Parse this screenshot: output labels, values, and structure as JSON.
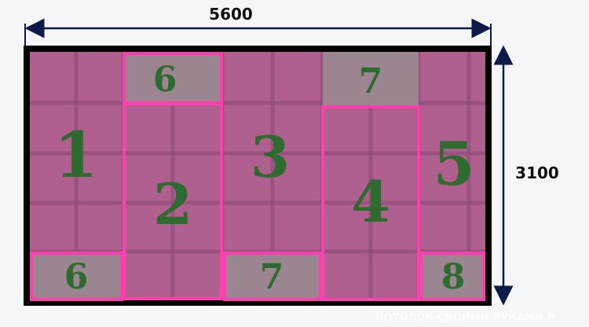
{
  "dimensions": {
    "width_label": "5600",
    "height_label": "3100"
  },
  "colors": {
    "panel": "#b0608e",
    "highlight": "#ff3fb0",
    "gray_panel": "#9a8590",
    "number": "#2e6b2e",
    "frame": "#000000",
    "arrow": "#0d1b4a"
  },
  "panels": [
    {
      "label": "1",
      "highlighted": false,
      "gray": false
    },
    {
      "label": "6",
      "highlighted": true,
      "gray": true
    },
    {
      "label": "2",
      "highlighted": true,
      "gray": false
    },
    {
      "label": "3",
      "highlighted": false,
      "gray": false
    },
    {
      "label": "7",
      "highlighted": false,
      "gray": true
    },
    {
      "label": "4",
      "highlighted": true,
      "gray": false
    },
    {
      "label": "5",
      "highlighted": false,
      "gray": false
    },
    {
      "label": "6",
      "highlighted": true,
      "gray": true
    },
    {
      "label": "7",
      "highlighted": true,
      "gray": true
    },
    {
      "label": "8",
      "highlighted": true,
      "gray": true
    }
  ],
  "watermark": "ПОТОЛОК-СВОИМИ-РУКАМИ.Р"
}
